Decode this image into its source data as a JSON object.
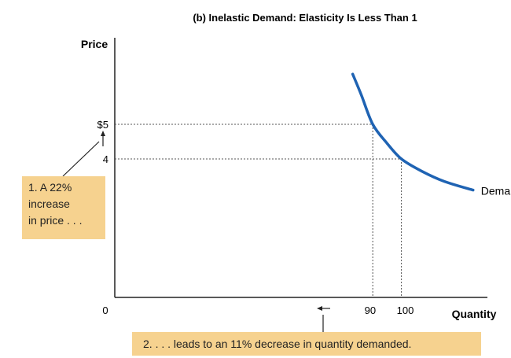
{
  "chart_data": {
    "type": "line",
    "title": "(b) Inelastic Demand: Elasticity Is Less Than 1",
    "ylabel": "Price",
    "xlabel": "Quantity",
    "origin_label": "0",
    "y_ticks": [
      {
        "value": 5,
        "label": "$5"
      },
      {
        "value": 4,
        "label": "4"
      }
    ],
    "x_ticks": [
      {
        "value": 90,
        "label": "90"
      },
      {
        "value": 100,
        "label": "100"
      }
    ],
    "series": [
      {
        "name": "Demand",
        "color": "#1f63b3",
        "x": [
          83,
          86,
          90,
          95,
          100,
          107,
          115,
          125
        ],
        "y": [
          6.45,
          5.85,
          5.0,
          4.45,
          4.0,
          3.65,
          3.35,
          3.1
        ]
      }
    ],
    "guides": [
      {
        "x": 90,
        "y": 5
      },
      {
        "x": 100,
        "y": 4
      }
    ],
    "xlim": [
      0,
      130
    ],
    "ylim": [
      0,
      7.5
    ],
    "grid": false
  },
  "annotations": {
    "price_callout": [
      "1. A 22%",
      "increase",
      "in price . . ."
    ],
    "quantity_callout": "2. . . . leads to an 11% decrease in quantity demanded."
  },
  "colors": {
    "curve": "#1f63b3",
    "callout_fill": "#f6d28f",
    "axis": "#222222"
  }
}
